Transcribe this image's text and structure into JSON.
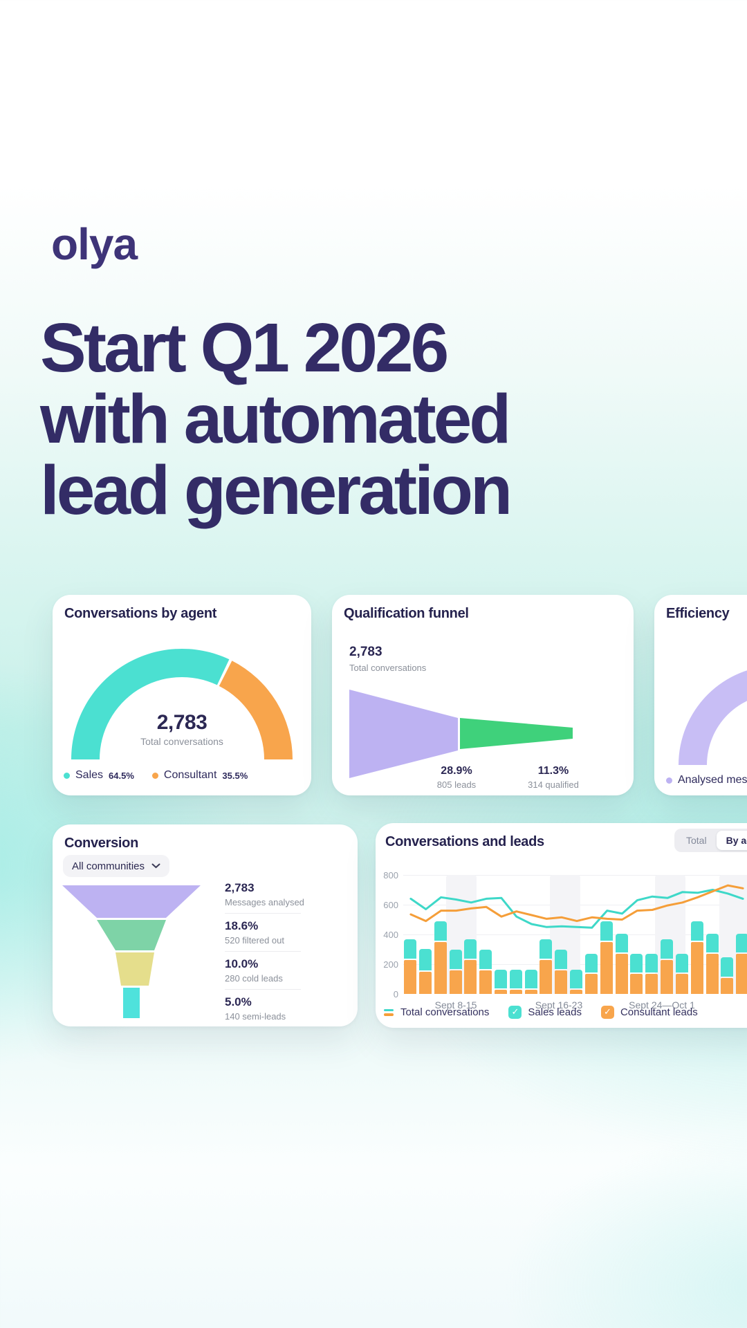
{
  "colors": {
    "teal": "#4BE0D1",
    "teal_line": "#3ED8C8",
    "orange": "#F8A54C",
    "orange_line": "#F59E39",
    "purple": "#BDB2F2",
    "purple_arc": "#C8BEF5",
    "green": "#3FD17B",
    "mint": "#7ED3A7",
    "yellow": "#E5DE8C",
    "cyan": "#4FE2DC",
    "navy": "#2E2A5C",
    "headline": "#332C66",
    "gray": "#8B909A",
    "band": "#F4F4F7"
  },
  "brand": {
    "logo": "olya"
  },
  "headline": {
    "line1": "Start Q1 2026",
    "line2": "with automated",
    "line3": "lead generation"
  },
  "cards": {
    "by_agent": {
      "title": "Conversations by agent",
      "center_value": "2,783",
      "center_label": "Total conversations",
      "legend": [
        {
          "label": "Sales",
          "value": "64.5%",
          "color": "teal"
        },
        {
          "label": "Consultant",
          "value": "35.5%",
          "color": "orange"
        }
      ],
      "chart_data": {
        "type": "gauge",
        "labels": [
          "Sales",
          "Consultant"
        ],
        "values": [
          64.5,
          35.5
        ],
        "colors": [
          "#4BE0D1",
          "#F8A54C"
        ],
        "center_value": "2,783",
        "center_label": "Total conversations"
      }
    },
    "qfunnel": {
      "title": "Qualification funnel",
      "start_value": "2,783",
      "start_label": "Total conversations",
      "stages": [
        {
          "pct": "28.9%",
          "label": "805 leads"
        },
        {
          "pct": "11.3%",
          "label": "314 qualified"
        }
      ],
      "chart_data": {
        "type": "funnel",
        "stages": [
          {
            "label": "Total conversations",
            "value": 2783,
            "pct": 100
          },
          {
            "label": "leads",
            "value": 805,
            "pct": 28.9
          },
          {
            "label": "qualified",
            "value": 314,
            "pct": 11.3
          }
        ]
      }
    },
    "efficiency": {
      "title": "Efficiency",
      "legend_label": "Analysed messages",
      "chart_data": {
        "type": "gauge",
        "labels": [
          "Analysed messages"
        ],
        "values": [
          100
        ],
        "colors": [
          "#C8BEF5"
        ]
      }
    },
    "conversion": {
      "title": "Conversion",
      "filter_label": "All communities",
      "stats": [
        {
          "value": "2,783",
          "label": "Messages analysed"
        },
        {
          "value": "18.6%",
          "label": "520 filtered out"
        },
        {
          "value": "10.0%",
          "label": "280 cold leads"
        },
        {
          "value": "5.0%",
          "label": "140 semi-leads"
        }
      ],
      "chart_data": {
        "type": "funnel",
        "stages": [
          {
            "label": "Messages analysed",
            "value": 2783,
            "pct": 100
          },
          {
            "label": "filtered out",
            "value": 520,
            "pct": 18.6
          },
          {
            "label": "cold leads",
            "value": 280,
            "pct": 10.0
          },
          {
            "label": "semi-leads",
            "value": 140,
            "pct": 5.0
          }
        ]
      }
    },
    "conv_leads": {
      "title": "Conversations and leads",
      "toggle": {
        "options": [
          "Total",
          "By agent"
        ],
        "selected": "By agent"
      },
      "legend": [
        {
          "label": "Total conversations",
          "type": "lines"
        },
        {
          "label": "Sales leads",
          "type": "check",
          "color": "teal"
        },
        {
          "label": "Consultant leads",
          "type": "check",
          "color": "orange"
        }
      ],
      "chart_data": {
        "type": "bar+line",
        "ylim": [
          0,
          800
        ],
        "yticks": [
          800,
          600,
          400,
          200,
          0
        ],
        "x_labels": [
          "Sept 8-15",
          "Sept 16-23",
          "Sept 24—Oct 1"
        ],
        "bars": {
          "consultant_leads": [
            230,
            150,
            350,
            160,
            230,
            160,
            30,
            30,
            30,
            230,
            160,
            30,
            135,
            350,
            270,
            135,
            135,
            230,
            135,
            350,
            270,
            105,
            270
          ],
          "sales_leads": [
            140,
            150,
            140,
            140,
            140,
            140,
            135,
            135,
            135,
            140,
            140,
            135,
            135,
            140,
            135,
            135,
            135,
            140,
            135,
            140,
            135,
            140,
            135
          ]
        },
        "lines": {
          "sales_conversations": [
            640,
            570,
            650,
            635,
            615,
            640,
            645,
            520,
            470,
            450,
            455,
            450,
            445,
            560,
            540,
            630,
            655,
            645,
            685,
            680,
            700,
            675,
            640
          ],
          "consultant_conversations": [
            535,
            490,
            560,
            560,
            575,
            585,
            520,
            555,
            530,
            505,
            515,
            490,
            515,
            505,
            500,
            560,
            565,
            595,
            615,
            650,
            690,
            730,
            710
          ]
        }
      }
    }
  }
}
